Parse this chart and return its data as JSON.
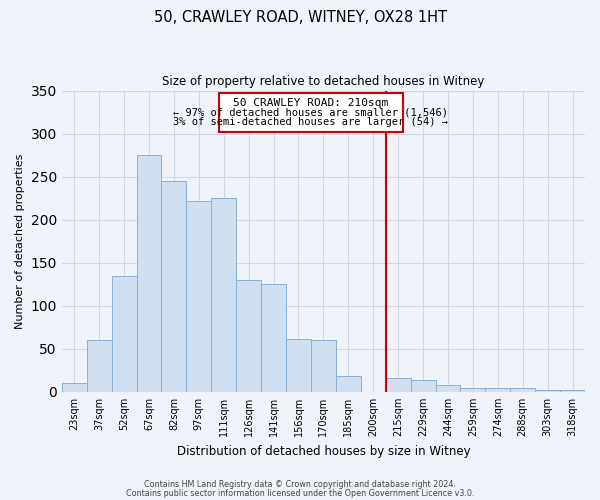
{
  "title": "50, CRAWLEY ROAD, WITNEY, OX28 1HT",
  "subtitle": "Size of property relative to detached houses in Witney",
  "xlabel": "Distribution of detached houses by size in Witney",
  "ylabel": "Number of detached properties",
  "bar_labels": [
    "23sqm",
    "37sqm",
    "52sqm",
    "67sqm",
    "82sqm",
    "97sqm",
    "111sqm",
    "126sqm",
    "141sqm",
    "156sqm",
    "170sqm",
    "185sqm",
    "200sqm",
    "215sqm",
    "229sqm",
    "244sqm",
    "259sqm",
    "274sqm",
    "288sqm",
    "303sqm",
    "318sqm"
  ],
  "bar_heights": [
    10,
    60,
    135,
    275,
    245,
    222,
    225,
    130,
    125,
    62,
    60,
    19,
    0,
    16,
    14,
    8,
    4,
    4,
    5,
    2,
    2
  ],
  "bar_color": "#cfdff0",
  "bar_edge_color": "#8ab0d4",
  "vline_color": "#cc0000",
  "box_text_line1": "50 CRAWLEY ROAD: 210sqm",
  "box_text_line2": "← 97% of detached houses are smaller (1,546)",
  "box_text_line3": "3% of semi-detached houses are larger (54) →",
  "box_color": "#ffffff",
  "box_edge_color": "#cc0000",
  "ylim": [
    0,
    350
  ],
  "yticks": [
    0,
    50,
    100,
    150,
    200,
    250,
    300,
    350
  ],
  "footer1": "Contains HM Land Registry data © Crown copyright and database right 2024.",
  "footer2": "Contains public sector information licensed under the Open Government Licence v3.0.",
  "grid_color": "#d0d8e8",
  "background_color": "#f0f4fa"
}
